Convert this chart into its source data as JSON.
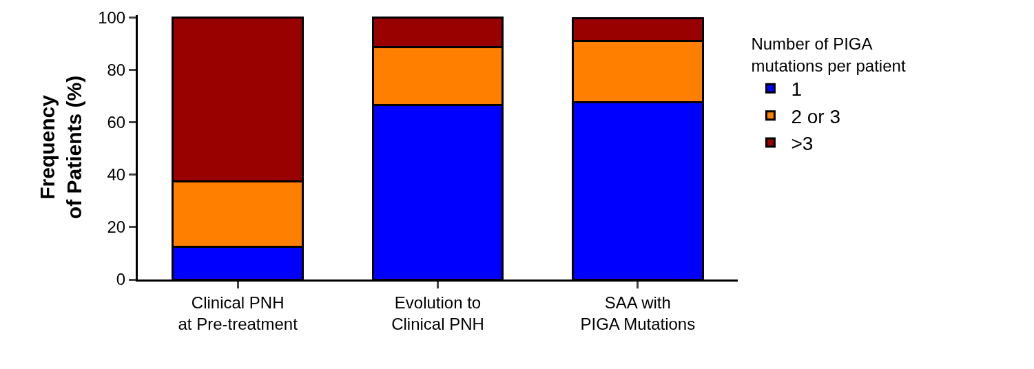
{
  "chart_data": {
    "type": "bar",
    "stacked": true,
    "ylabel": "Frequency\nof Patients (%)",
    "legend_title": "Number of PIGA\nmutations per patient",
    "legend": "right",
    "categories": [
      "Clinical PNH\nat Pre-treatment",
      "Evolution to\nClinical PNH",
      "SAA with\nPIGA Mutations"
    ],
    "series": [
      {
        "name": "1",
        "color": "#0000ff",
        "values": [
          12.5,
          66.7,
          67.6
        ]
      },
      {
        "name": "2 or 3",
        "color": "#ff8000",
        "values": [
          25,
          22.2,
          23.5
        ]
      },
      {
        "name": ">3",
        "color": "#990000",
        "values": [
          62.5,
          11.1,
          8.8
        ]
      }
    ],
    "ylim": [
      0,
      101
    ],
    "yticks": [
      0,
      20,
      40,
      60,
      80,
      100
    ]
  }
}
